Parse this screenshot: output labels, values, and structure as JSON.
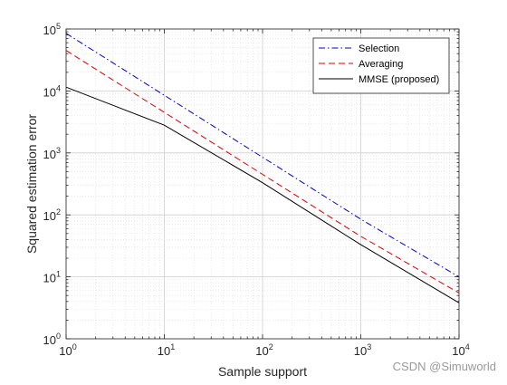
{
  "chart_data": {
    "type": "line",
    "x_scale": "log",
    "y_scale": "log",
    "xlabel": "Sample support",
    "ylabel": "Squared estimation error",
    "xlim": [
      1,
      10000
    ],
    "ylim": [
      1,
      100000
    ],
    "x_ticks": [
      {
        "value": 1,
        "base": "10",
        "exp": "0"
      },
      {
        "value": 10,
        "base": "10",
        "exp": "1"
      },
      {
        "value": 100,
        "base": "10",
        "exp": "2"
      },
      {
        "value": 1000,
        "base": "10",
        "exp": "3"
      },
      {
        "value": 10000,
        "base": "10",
        "exp": "4"
      }
    ],
    "y_ticks": [
      {
        "value": 1,
        "base": "10",
        "exp": "0"
      },
      {
        "value": 10,
        "base": "10",
        "exp": "1"
      },
      {
        "value": 100,
        "base": "10",
        "exp": "2"
      },
      {
        "value": 1000,
        "base": "10",
        "exp": "3"
      },
      {
        "value": 10000,
        "base": "10",
        "exp": "4"
      },
      {
        "value": 100000,
        "base": "10",
        "exp": "5"
      }
    ],
    "grid": true,
    "minor_grid": true,
    "legend_position": "top-right",
    "series": [
      {
        "name": "Selection",
        "color": "#0000cc",
        "style": "dash-dot",
        "points": [
          [
            1,
            85000
          ],
          [
            10,
            8500
          ],
          [
            100,
            850
          ],
          [
            1000,
            85
          ],
          [
            10000,
            10
          ]
        ]
      },
      {
        "name": "Averaging",
        "color": "#dd0000",
        "style": "dashed",
        "points": [
          [
            1,
            45000
          ],
          [
            10,
            4500
          ],
          [
            100,
            450
          ],
          [
            1000,
            45
          ],
          [
            10000,
            5.5
          ]
        ]
      },
      {
        "name": "MMSE (proposed)",
        "color": "#000000",
        "style": "solid",
        "points": [
          [
            1,
            11500
          ],
          [
            10,
            2800
          ],
          [
            100,
            330
          ],
          [
            1000,
            33
          ],
          [
            10000,
            3.8
          ]
        ]
      }
    ]
  },
  "watermark": "CSDN @Simuworld"
}
